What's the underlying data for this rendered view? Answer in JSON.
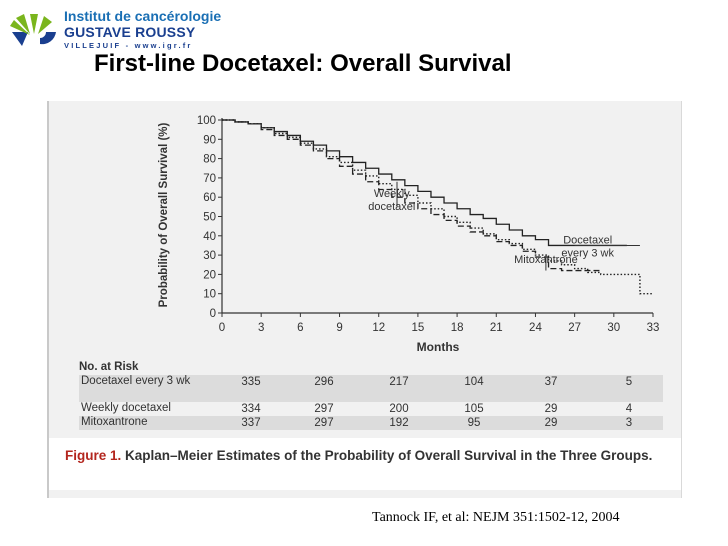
{
  "logo": {
    "line1": "Institut de cancérologie",
    "line2": "GUSTAVE ROUSSY",
    "line3": "VILLEJUIF - www.igr.fr"
  },
  "title": "First-line Docetaxel: Overall Survival",
  "citation": "Tannock IF, et al:  NEJM 351:1502-12, 2004",
  "colors": {
    "logo_blue": "#1a3f8f",
    "logo_green": "#7ab51d",
    "caption_red": "#b3261e"
  },
  "chart_data": {
    "type": "line",
    "xlabel": "Months",
    "ylabel": "Probability of Overall Survival (%)",
    "xlim": [
      0,
      33
    ],
    "ylim": [
      0,
      100
    ],
    "x_ticks": [
      "0",
      "3",
      "6",
      "9",
      "12",
      "15",
      "18",
      "21",
      "24",
      "27",
      "30",
      "33"
    ],
    "y_ticks": [
      "0",
      "10",
      "20",
      "30",
      "40",
      "50",
      "60",
      "70",
      "80",
      "90",
      "100"
    ],
    "series": [
      {
        "name": "Docetaxel every 3 wk",
        "style": "solid",
        "x": [
          0,
          1,
          2,
          3,
          4,
          5,
          6,
          7,
          8,
          9,
          10,
          11,
          12,
          13,
          14,
          15,
          16,
          17,
          18,
          19,
          20,
          21,
          22,
          23,
          24,
          25,
          26,
          27,
          28,
          29,
          30,
          31
        ],
        "y": [
          100,
          99,
          98,
          96,
          94,
          92,
          89,
          87,
          84,
          81,
          78,
          75,
          72,
          69,
          66,
          63,
          60,
          57,
          54,
          51,
          49,
          46,
          43,
          40,
          38,
          35,
          35,
          35,
          35,
          35,
          35,
          35
        ]
      },
      {
        "name": "Weekly docetaxel",
        "style": "dotted",
        "x": [
          0,
          1,
          2,
          3,
          4,
          5,
          6,
          7,
          8,
          9,
          10,
          11,
          12,
          13,
          14,
          15,
          16,
          17,
          18,
          19,
          20,
          21,
          22,
          23,
          24,
          25,
          26,
          27,
          28,
          29,
          30,
          31,
          32,
          33
        ],
        "y": [
          100,
          99,
          98,
          96,
          93,
          91,
          88,
          85,
          81,
          78,
          74,
          71,
          67,
          64,
          61,
          57,
          54,
          50,
          47,
          44,
          41,
          38,
          36,
          33,
          30,
          27,
          25,
          23,
          21,
          20,
          20,
          20,
          10,
          10
        ]
      },
      {
        "name": "Mitoxantrone",
        "style": "dashed",
        "x": [
          0,
          1,
          2,
          3,
          4,
          5,
          6,
          7,
          8,
          9,
          10,
          11,
          12,
          13,
          14,
          15,
          16,
          17,
          18,
          19,
          20,
          21,
          22,
          23,
          24,
          25,
          26,
          27,
          28,
          29
        ],
        "y": [
          100,
          99,
          98,
          95,
          92,
          90,
          87,
          84,
          80,
          76,
          72,
          68,
          64,
          60,
          57,
          54,
          51,
          48,
          45,
          42,
          40,
          37,
          35,
          32,
          29,
          23,
          22,
          22,
          22,
          22
        ]
      }
    ],
    "annotations": [
      {
        "text": [
          "Weekly",
          "docetaxel"
        ],
        "x": 13,
        "y": 60
      },
      {
        "text": [
          "Docetaxel",
          "every 3 wk"
        ],
        "x": 28,
        "y": 36
      },
      {
        "text": [
          "Mitoxantrone"
        ],
        "x": 24.8,
        "y": 26
      }
    ],
    "risk_table": {
      "title": "No. at Risk",
      "rows": [
        {
          "label": "Docetaxel every 3 wk",
          "values": [
            "335",
            "296",
            "217",
            "104",
            "37",
            "5"
          ]
        },
        {
          "label": "Weekly docetaxel",
          "values": [
            "334",
            "297",
            "200",
            "105",
            "29",
            "4"
          ]
        },
        {
          "label": "Mitoxantrone",
          "values": [
            "337",
            "297",
            "192",
            "95",
            "29",
            "3"
          ]
        }
      ]
    },
    "caption": {
      "figure_label": "Figure 1.",
      "text": "Kaplan–Meier Estimates of the Probability of Overall Survival in the Three Groups."
    }
  }
}
